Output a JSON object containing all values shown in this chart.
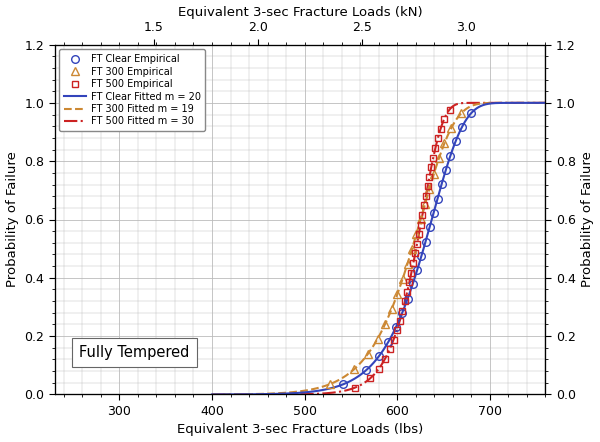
{
  "title_top": "Equivalent 3-sec Fracture Loads (kN)",
  "xlabel": "Equivalent 3-sec Fracture Loads (lbs)",
  "ylabel_left": "Probability of Failure",
  "ylabel_right": "Probability of Failure",
  "annotation": "Fully Tempered",
  "xlim_lbs": [
    230,
    760
  ],
  "ylim": [
    0.0,
    1.2
  ],
  "yticks": [
    0.0,
    0.2,
    0.4,
    0.6,
    0.8,
    1.0,
    1.2
  ],
  "xticks_lbs": [
    300,
    400,
    500,
    600,
    700
  ],
  "xticks_kN": [
    1.5,
    2.0,
    2.5,
    3.0
  ],
  "lbs_per_kN": 224.809,
  "weibull_clear": {
    "m": 20,
    "theta": 640,
    "color": "#3344bb",
    "style": "solid"
  },
  "weibull_300": {
    "m": 19,
    "theta": 628,
    "color": "#cc8833",
    "style": "dashed"
  },
  "weibull_500": {
    "m": 30,
    "theta": 628,
    "color": "#cc2222",
    "style": "dashdot"
  },
  "grid_color": "#bbbbbb",
  "bg_color": "#ffffff",
  "legend_entries": [
    {
      "label": "FT Clear Empirical"
    },
    {
      "label": "FT 300 Empirical"
    },
    {
      "label": "FT 500 Empirical"
    },
    {
      "label": "FT Clear Fitted m = 20"
    },
    {
      "label": "FT 300 Fitted m = 19"
    },
    {
      "label": "FT 500 Fitted m = 30"
    }
  ],
  "empirical_clear_n": 20,
  "empirical_300_n": 19,
  "empirical_500_n": 30
}
